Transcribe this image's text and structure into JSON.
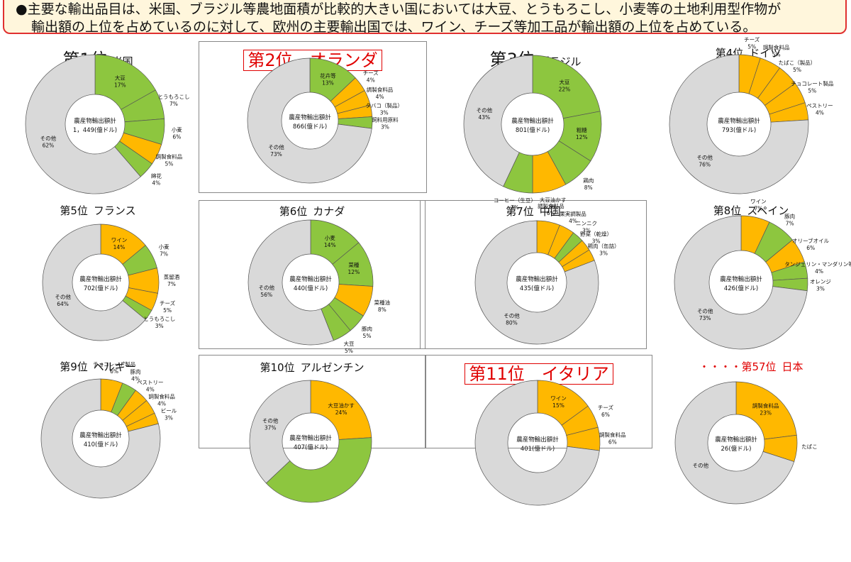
{
  "banner": {
    "line1": "●主要な輸出品目は、米国、ブラジル等農地面積が比較的大きい国においては大豆、とうもろこし、小麦等の土地利用型作物が",
    "line2": "輸出額の上位を占めているのに対して、欧州の主要輸出国では、ワイン、チーズ等加工品が輸出額の上位を占めている。"
  },
  "colors": {
    "green": "#8dc63f",
    "orange": "#ffb800",
    "gray": "#d9d9d9",
    "red": "#e00000"
  },
  "chart_data": [
    {
      "type": "pie",
      "rank": "第1位",
      "country": "米国",
      "center_title": "農産物輸出額計",
      "center_value": "1，449(億ドル)",
      "slices": [
        {
          "name": "大豆",
          "value": 17,
          "label": "17%",
          "color": "green"
        },
        {
          "name": "とうもろこし",
          "value": 7,
          "label": "7%",
          "color": "green"
        },
        {
          "name": "小麦",
          "value": 6,
          "label": "6%",
          "color": "green"
        },
        {
          "name": "調製食料品",
          "value": 5,
          "label": "5%",
          "color": "orange"
        },
        {
          "name": "綿花",
          "value": 4,
          "label": "4%",
          "color": "green"
        },
        {
          "name": "その他",
          "value": 62,
          "label": "62%",
          "color": "gray"
        }
      ]
    },
    {
      "type": "pie",
      "rank": "第2位",
      "country": "オランダ",
      "center_title": "農産物輸出額計",
      "center_value": "866(億ドル)",
      "slices": [
        {
          "name": "花卉等",
          "value": 13,
          "label": "13%",
          "color": "green"
        },
        {
          "name": "チーズ",
          "value": 4,
          "label": "4%",
          "color": "orange"
        },
        {
          "name": "調製食料品",
          "value": 4,
          "label": "4%",
          "color": "orange"
        },
        {
          "name": "タバコ（製品）",
          "value": 3,
          "label": "3%",
          "color": "orange"
        },
        {
          "name": "飼料用原料",
          "value": 3,
          "label": "3%",
          "color": "green"
        },
        {
          "name": "その他",
          "value": 73,
          "label": "73%",
          "color": "gray"
        }
      ]
    },
    {
      "type": "pie",
      "rank": "第3位",
      "country": "ブラジル",
      "center_title": "農産物輸出額計",
      "center_value": "801(億ドル)",
      "slices": [
        {
          "name": "大豆",
          "value": 22,
          "label": "22%",
          "color": "green"
        },
        {
          "name": "粗糖",
          "value": 12,
          "label": "12%",
          "color": "green"
        },
        {
          "name": "鶏肉",
          "value": 8,
          "label": "8%",
          "color": "green"
        },
        {
          "name": "大豆油かす",
          "value": 8,
          "label": "8%",
          "color": "orange"
        },
        {
          "name": "コーヒー（生豆）",
          "value": 7,
          "label": "7%",
          "color": "green"
        },
        {
          "name": "その他",
          "value": 43,
          "label": "43%",
          "color": "gray"
        }
      ]
    },
    {
      "type": "pie",
      "rank": "第4位",
      "country": "ドイツ",
      "center_title": "農産物輸出額計",
      "center_value": "793(億ドル)",
      "slices": [
        {
          "name": "チーズ",
          "value": 5,
          "label": "5%",
          "color": "orange"
        },
        {
          "name": "調製食料品",
          "value": 5,
          "label": "5%",
          "color": "orange"
        },
        {
          "name": "たばこ（製品）",
          "value": 5,
          "label": "5%",
          "color": "orange"
        },
        {
          "name": "チョコレート製品",
          "value": 5,
          "label": "5%",
          "color": "orange"
        },
        {
          "name": "ペストリー",
          "value": 4,
          "label": "4%",
          "color": "orange"
        },
        {
          "name": "その他",
          "value": 76,
          "label": "76%",
          "color": "gray"
        }
      ]
    },
    {
      "type": "pie",
      "rank": "第5位",
      "country": "フランス",
      "center_title": "農産物輸出額計",
      "center_value": "702(億ドル)",
      "slices": [
        {
          "name": "ワイン",
          "value": 14,
          "label": "14%",
          "color": "orange"
        },
        {
          "name": "小麦",
          "value": 7,
          "label": "7%",
          "color": "green"
        },
        {
          "name": "蒸留酒",
          "value": 7,
          "label": "7%",
          "color": "orange"
        },
        {
          "name": "チーズ",
          "value": 5,
          "label": "5%",
          "color": "orange"
        },
        {
          "name": "とうもろこし",
          "value": 3,
          "label": "3%",
          "color": "green"
        },
        {
          "name": "その他",
          "value": 64,
          "label": "64%",
          "color": "gray"
        }
      ]
    },
    {
      "type": "pie",
      "rank": "第6位",
      "country": "カナダ",
      "center_title": "農産物輸出額計",
      "center_value": "440(億ドル)",
      "slices": [
        {
          "name": "小麦",
          "value": 14,
          "label": "14%",
          "color": "green"
        },
        {
          "name": "菜種",
          "value": 12,
          "label": "12%",
          "color": "green"
        },
        {
          "name": "菜種油",
          "value": 8,
          "label": "8%",
          "color": "orange"
        },
        {
          "name": "豚肉",
          "value": 5,
          "label": "5%",
          "color": "green"
        },
        {
          "name": "大豆",
          "value": 5,
          "label": "5%",
          "color": "green"
        },
        {
          "name": "その他",
          "value": 56,
          "label": "56%",
          "color": "gray"
        }
      ]
    },
    {
      "type": "pie",
      "rank": "第7位",
      "country": "中国",
      "center_title": "農産物輸出額計",
      "center_value": "435(億ドル)",
      "slices": [
        {
          "name": "調製食料品",
          "value": 6,
          "label": "6%",
          "color": "orange"
        },
        {
          "name": "果実調製品",
          "value": 4,
          "label": "4%",
          "color": "orange"
        },
        {
          "name": "ニンニク",
          "value": 3,
          "label": "3%",
          "color": "green"
        },
        {
          "name": "野菜（乾燥）",
          "value": 3,
          "label": "3%",
          "color": "orange"
        },
        {
          "name": "鶏肉（缶詰）",
          "value": 3,
          "label": "3%",
          "color": "orange"
        },
        {
          "name": "その他",
          "value": 80,
          "label": "80%",
          "color": "gray"
        }
      ]
    },
    {
      "type": "pie",
      "rank": "第8位",
      "country": "スペイン",
      "center_title": "農産物輸出額計",
      "center_value": "426(億ドル)",
      "slices": [
        {
          "name": "ワイン",
          "value": 7,
          "label": "7%",
          "color": "orange"
        },
        {
          "name": "豚肉",
          "value": 7,
          "label": "7%",
          "color": "green"
        },
        {
          "name": "オリーブオイル",
          "value": 6,
          "label": "6%",
          "color": "orange"
        },
        {
          "name": "タンジェリン・マンダリン等",
          "value": 4,
          "label": "4%",
          "color": "green"
        },
        {
          "name": "オレンジ",
          "value": 3,
          "label": "3%",
          "color": "green"
        },
        {
          "name": "その他",
          "value": 73,
          "label": "73%",
          "color": "gray"
        }
      ]
    },
    {
      "type": "pie",
      "rank": "第9位",
      "country": "ベルギー",
      "center_title": "農産物輸出額計",
      "center_value": "410(億ドル)",
      "slices": [
        {
          "name": "チョコレート製品",
          "value": 6,
          "label": "6%",
          "color": "orange"
        },
        {
          "name": "豚肉",
          "value": 4,
          "label": "4%",
          "color": "green"
        },
        {
          "name": "ペストリー",
          "value": 4,
          "label": "4%",
          "color": "orange"
        },
        {
          "name": "調製食料品",
          "value": 4,
          "label": "4%",
          "color": "orange"
        },
        {
          "name": "ビール",
          "value": 3,
          "label": "3%",
          "color": "orange"
        },
        {
          "name": "",
          "value": 79,
          "label": "",
          "color": "gray"
        }
      ]
    },
    {
      "type": "pie",
      "rank": "第10位",
      "country": "アルゼンチン",
      "center_title": "農産物輸出額計",
      "center_value": "407(億ドル)",
      "slices": [
        {
          "name": "大豆油かす",
          "value": 24,
          "label": "24%",
          "color": "orange"
        },
        {
          "name": "",
          "value": 39,
          "label": "",
          "color": "green"
        },
        {
          "name": "その他",
          "value": 37,
          "label": "37%",
          "color": "gray"
        }
      ]
    },
    {
      "type": "pie",
      "rank": "第11位",
      "country": "イタリア",
      "center_title": "農産物輸出額計",
      "center_value": "401(億ドル)",
      "slices": [
        {
          "name": "ワイン",
          "value": 15,
          "label": "15%",
          "color": "orange"
        },
        {
          "name": "チーズ",
          "value": 6,
          "label": "6%",
          "color": "orange"
        },
        {
          "name": "調製食料品",
          "value": 6,
          "label": "6%",
          "color": "orange"
        },
        {
          "name": "",
          "value": 73,
          "label": "",
          "color": "gray"
        }
      ]
    },
    {
      "type": "pie",
      "rank": "・・・・第57位",
      "country": "日本",
      "center_title": "農産物輸出額計",
      "center_value": "26(億ドル)",
      "slices": [
        {
          "name": "調製食料品",
          "value": 23,
          "label": "23%",
          "color": "orange"
        },
        {
          "name": "たばこ",
          "value": 7,
          "label": "",
          "color": "orange"
        },
        {
          "name": "その他",
          "value": 70,
          "label": "",
          "color": "gray"
        }
      ]
    }
  ]
}
